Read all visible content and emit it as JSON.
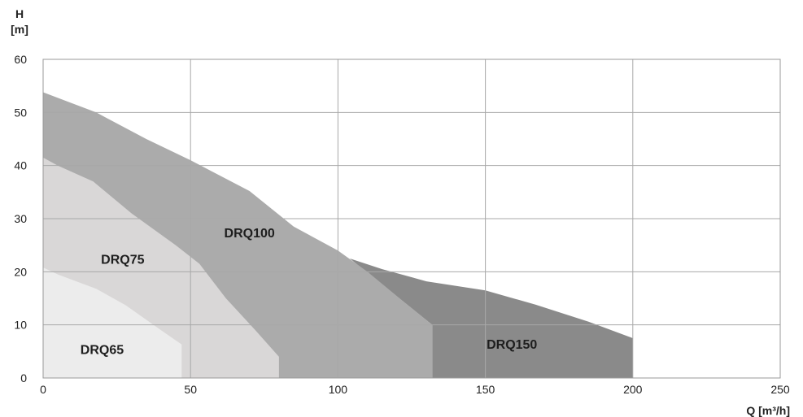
{
  "chart_data": {
    "type": "area",
    "title": "",
    "ylabel": "H",
    "yunit": "[m]",
    "xlabel": "Q [m³/h]",
    "xlim": [
      0,
      250
    ],
    "ylim": [
      0,
      60
    ],
    "xticks": [
      0,
      50,
      100,
      150,
      200,
      250
    ],
    "yticks": [
      0,
      10,
      20,
      30,
      40,
      50,
      60
    ],
    "grid": true,
    "series": [
      {
        "name": "DRQ150",
        "color": "#8a8a8a",
        "label_at": [
          159,
          5.5
        ],
        "points": [
          [
            104,
            22.5
          ],
          [
            115,
            20.5
          ],
          [
            130,
            18.2
          ],
          [
            150,
            16.5
          ],
          [
            167,
            13.8
          ],
          [
            185,
            10.6
          ],
          [
            200,
            7.5
          ],
          [
            200,
            0
          ],
          [
            132,
            0
          ],
          [
            132,
            10
          ],
          [
            104,
            22.5
          ]
        ]
      },
      {
        "name": "DRQ100",
        "color": "#ababab",
        "label_at": [
          70,
          26.5
        ],
        "points": [
          [
            0,
            53.8
          ],
          [
            18,
            50
          ],
          [
            35,
            45
          ],
          [
            50,
            41
          ],
          [
            70,
            35.2
          ],
          [
            85,
            28.5
          ],
          [
            100,
            24
          ],
          [
            110,
            20
          ],
          [
            122,
            14.5
          ],
          [
            132,
            10
          ],
          [
            132,
            0
          ],
          [
            0,
            0
          ]
        ]
      },
      {
        "name": "DRQ75",
        "color": "#d9d7d7",
        "label_at": [
          27,
          21.5
        ],
        "points": [
          [
            0,
            41.5
          ],
          [
            5,
            40
          ],
          [
            17,
            37
          ],
          [
            30,
            31
          ],
          [
            45,
            25
          ],
          [
            53,
            21.5
          ],
          [
            62,
            15
          ],
          [
            72,
            9
          ],
          [
            80,
            4
          ],
          [
            80,
            0
          ],
          [
            0,
            0
          ]
        ]
      },
      {
        "name": "DRQ65",
        "color": "#ececec",
        "label_at": [
          20,
          4.5
        ],
        "points": [
          [
            0,
            20.8
          ],
          [
            5,
            19.5
          ],
          [
            18,
            16.8
          ],
          [
            28,
            13.7
          ],
          [
            40,
            9
          ],
          [
            47,
            6.3
          ],
          [
            47,
            0
          ],
          [
            0,
            0
          ]
        ]
      }
    ]
  }
}
